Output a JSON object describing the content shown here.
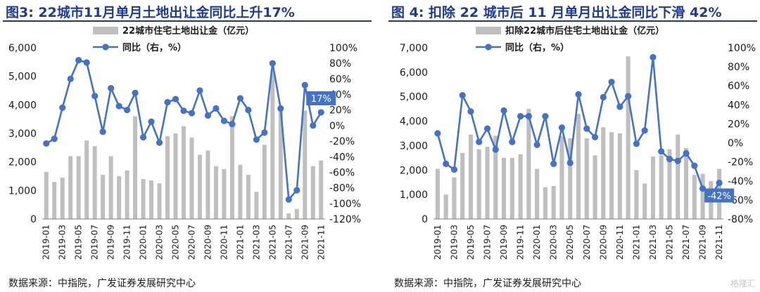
{
  "panels": [
    {
      "title": "图3:  22城市11月单月土地出让金同比上升17%",
      "source": "数据来源：中指院，广发证券发展研究中心"
    },
    {
      "title": "图 4:  扣除 22 城市后 11 月单月出让金同比下滑 42%",
      "source": "数据来源：中指院，广发证券发展研究中心"
    }
  ],
  "watermark": "格隆汇",
  "chart_data": [
    {
      "type": "bar",
      "categories": [
        "2019-01",
        "2019-02",
        "2019-03",
        "2019-04",
        "2019-05",
        "2019-06",
        "2019-07",
        "2019-08",
        "2019-09",
        "2019-10",
        "2019-11",
        "2019-12",
        "2020-01",
        "2020-02",
        "2020-03",
        "2020-04",
        "2020-05",
        "2020-06",
        "2020-07",
        "2020-08",
        "2020-09",
        "2020-10",
        "2020-11",
        "2020-12",
        "2021-01",
        "2021-02",
        "2021-03",
        "2021-04",
        "2021-05",
        "2021-06",
        "2021-07",
        "2021-08",
        "2021-09",
        "2021-10",
        "2021-11"
      ],
      "x_tick_labels": [
        "2019-01",
        "2019-03",
        "2019-05",
        "2019-07",
        "2019-09",
        "2019-11",
        "2020-01",
        "2020-03",
        "2020-05",
        "2020-07",
        "2020-09",
        "2020-11",
        "2021-01",
        "2021-03",
        "2021-05",
        "2021-07",
        "2021-09",
        "2021-11"
      ],
      "series": [
        {
          "name": "22城市住宅土地出让金（亿元）",
          "kind": "bar",
          "axis": "left",
          "color": "#bfbfbf",
          "values": [
            1650,
            1300,
            1450,
            2200,
            2200,
            2750,
            2550,
            1550,
            2200,
            1500,
            1700,
            3600,
            1400,
            1350,
            1250,
            2900,
            3000,
            3250,
            2850,
            2250,
            2400,
            1850,
            1750,
            3600,
            1900,
            1550,
            950,
            2600,
            5200,
            3900,
            200,
            350,
            3800,
            1850,
            2050
          ]
        },
        {
          "name": "同比（右，%）",
          "kind": "line",
          "axis": "right",
          "color": "#4472c4",
          "values": [
            -23,
            -17,
            23,
            60,
            84,
            81,
            38,
            -8,
            48,
            25,
            20,
            42,
            -15,
            5,
            -22,
            30,
            34,
            19,
            16,
            45,
            13,
            22,
            6,
            2,
            35,
            20,
            -18,
            -9,
            80,
            22,
            -95,
            -83,
            52,
            0,
            17
          ]
        }
      ],
      "yleft": {
        "min": 0,
        "max": 6000,
        "ticks": [
          "0",
          "1,000",
          "2,000",
          "3,000",
          "4,000",
          "5,000",
          "6,000"
        ]
      },
      "yright": {
        "min": -120,
        "max": 100,
        "ticks": [
          "-120%",
          "-100%",
          "-80%",
          "-60%",
          "-40%",
          "-20%",
          "0%",
          "20%",
          "40%",
          "60%",
          "80%",
          "100%"
        ]
      },
      "callout": "17%"
    },
    {
      "type": "bar",
      "categories": [
        "2019-01",
        "2019-02",
        "2019-03",
        "2019-04",
        "2019-05",
        "2019-06",
        "2019-07",
        "2019-08",
        "2019-09",
        "2019-10",
        "2019-11",
        "2019-12",
        "2020-01",
        "2020-02",
        "2020-03",
        "2020-04",
        "2020-05",
        "2020-06",
        "2020-07",
        "2020-08",
        "2020-09",
        "2020-10",
        "2020-11",
        "2020-12",
        "2021-01",
        "2021-02",
        "2021-03",
        "2021-04",
        "2021-05",
        "2021-06",
        "2021-07",
        "2021-08",
        "2021-09",
        "2021-10",
        "2021-11"
      ],
      "x_tick_labels": [
        "2019-01",
        "2019-03",
        "2019-05",
        "2019-07",
        "2019-09",
        "2019-11",
        "2020-01",
        "2020-03",
        "2020-05",
        "2020-07",
        "2020-09",
        "2020-11",
        "2021-01",
        "2021-03",
        "2021-05",
        "2021-07",
        "2021-09",
        "2021-11"
      ],
      "series": [
        {
          "name": "扣除22城市后住宅土地出让金（亿元）",
          "kind": "bar",
          "axis": "left",
          "color": "#bfbfbf",
          "values": [
            2050,
            1000,
            1700,
            2700,
            3450,
            2850,
            2950,
            3400,
            2500,
            2500,
            2650,
            4500,
            2050,
            1300,
            1350,
            3400,
            3300,
            4300,
            3300,
            2600,
            3750,
            3550,
            3500,
            6650,
            2000,
            1450,
            2550,
            2600,
            2850,
            3450,
            2900,
            1800,
            1850,
            1550,
            2050
          ]
        },
        {
          "name": "同比（右，%）",
          "kind": "line",
          "axis": "right",
          "color": "#4472c4",
          "values": [
            10,
            -22,
            -28,
            50,
            33,
            1,
            15,
            -7,
            34,
            1,
            28,
            28,
            -2,
            28,
            -22,
            16,
            -21,
            51,
            15,
            6,
            48,
            64,
            38,
            49,
            -1,
            13,
            90,
            -9,
            -17,
            -19,
            -11,
            -24,
            -48,
            -55,
            -42
          ]
        }
      ],
      "yleft": {
        "min": 0,
        "max": 7000,
        "ticks": [
          "0",
          "1,000",
          "2,000",
          "3,000",
          "4,000",
          "5,000",
          "6,000",
          "7,000"
        ]
      },
      "yright": {
        "min": -80,
        "max": 100,
        "ticks": [
          "-80%",
          "-60%",
          "-40%",
          "-20%",
          "0%",
          "20%",
          "40%",
          "60%",
          "80%",
          "100%"
        ]
      },
      "callout": "-42%"
    }
  ]
}
